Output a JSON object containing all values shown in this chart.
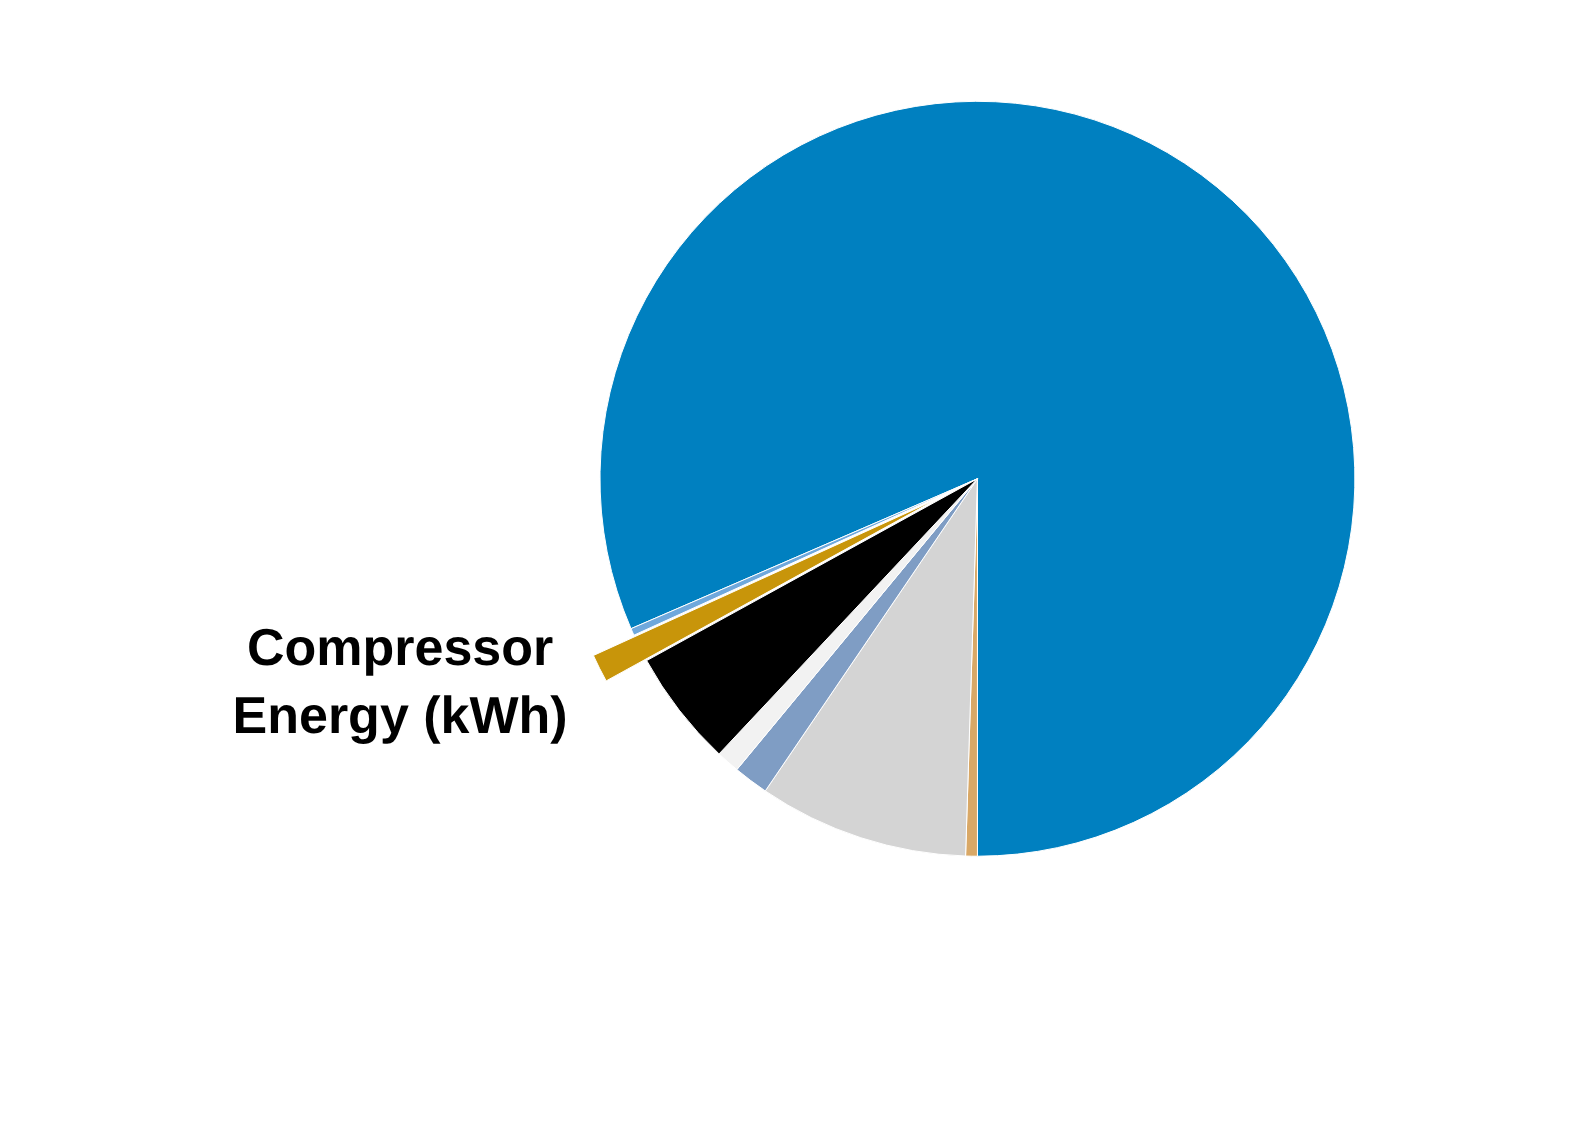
{
  "chart_data": {
    "type": "pie",
    "categories": [
      null,
      null,
      null,
      null,
      null,
      null,
      "Compressor Energy (kWh)",
      null
    ],
    "values": [
      81.5,
      0.5,
      9,
      1.5,
      1,
      5,
      1.2,
      0.3
    ],
    "colors": [
      "#0080c0",
      "#d9a866",
      "#d4d4d4",
      "#7f9dc4",
      "#f2f2f2",
      "#000000",
      "#c8950a",
      "#6fa8dc"
    ]
  }
}
